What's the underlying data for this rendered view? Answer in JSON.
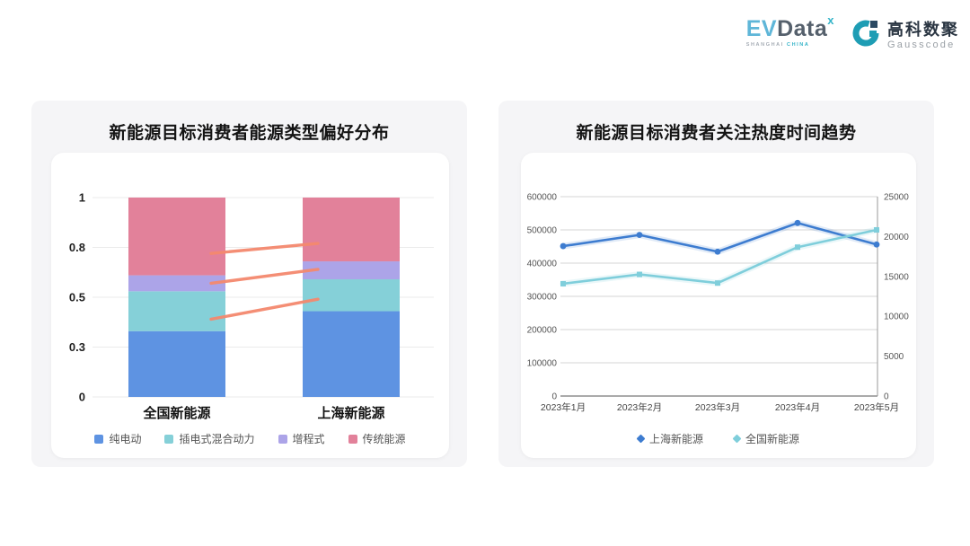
{
  "header": {
    "evdata": {
      "ev": "EV",
      "data": "Data",
      "sup": "x",
      "tagline_left": "SHANGHAI",
      "tagline_right": "CHINA"
    },
    "gausscode": {
      "cn": "高科数聚",
      "en": "Gausscode"
    }
  },
  "chart_data": [
    {
      "type": "bar",
      "stacked": true,
      "title": "新能源目标消费者能源类型偏好分布",
      "categories": [
        "全国新能源",
        "上海新能源"
      ],
      "series": [
        {
          "name": "纯电动",
          "color": "#5E93E2",
          "values": [
            0.33,
            0.43
          ]
        },
        {
          "name": "插电式混合动力",
          "color": "#85D0D8",
          "values": [
            0.2,
            0.16
          ]
        },
        {
          "name": "增程式",
          "color": "#ACA4E8",
          "values": [
            0.08,
            0.09
          ]
        },
        {
          "name": "传统能源",
          "color": "#E2819A",
          "values": [
            0.39,
            0.32
          ]
        }
      ],
      "ylim": [
        0,
        1
      ],
      "y_ticks": [
        "0",
        "0.3",
        "0.5",
        "0.8",
        "1"
      ],
      "y_tick_positions": [
        0,
        0.25,
        0.5,
        0.75,
        1
      ],
      "grid": true,
      "legend_position": "bottom",
      "connector_lines": {
        "color": "#F4896E",
        "segments": [
          {
            "from": 0.72,
            "to": 0.77
          },
          {
            "from": 0.57,
            "to": 0.64
          },
          {
            "from": 0.39,
            "to": 0.49
          }
        ]
      }
    },
    {
      "type": "line",
      "title": "新能源目标消费者关注热度时间趋势",
      "x": [
        "2023年1月",
        "2023年2月",
        "2023年3月",
        "2023年4月",
        "2023年5月"
      ],
      "series": [
        {
          "name": "上海新能源",
          "axis": "right",
          "color": "#3D7CD0",
          "marker": "circle",
          "values": [
            18800,
            20200,
            18100,
            21700,
            19000
          ]
        },
        {
          "name": "全国新能源",
          "axis": "left",
          "color": "#7FCEDB",
          "marker": "square",
          "values": [
            338000,
            366000,
            340000,
            448000,
            500000
          ]
        }
      ],
      "left_axis": {
        "max": 600000,
        "ticks": [
          0,
          100000,
          200000,
          300000,
          400000,
          500000,
          600000
        ]
      },
      "right_axis": {
        "max": 25000,
        "ticks": [
          0,
          5000,
          10000,
          15000,
          20000,
          25000
        ]
      },
      "grid": true,
      "legend_position": "bottom"
    }
  ]
}
